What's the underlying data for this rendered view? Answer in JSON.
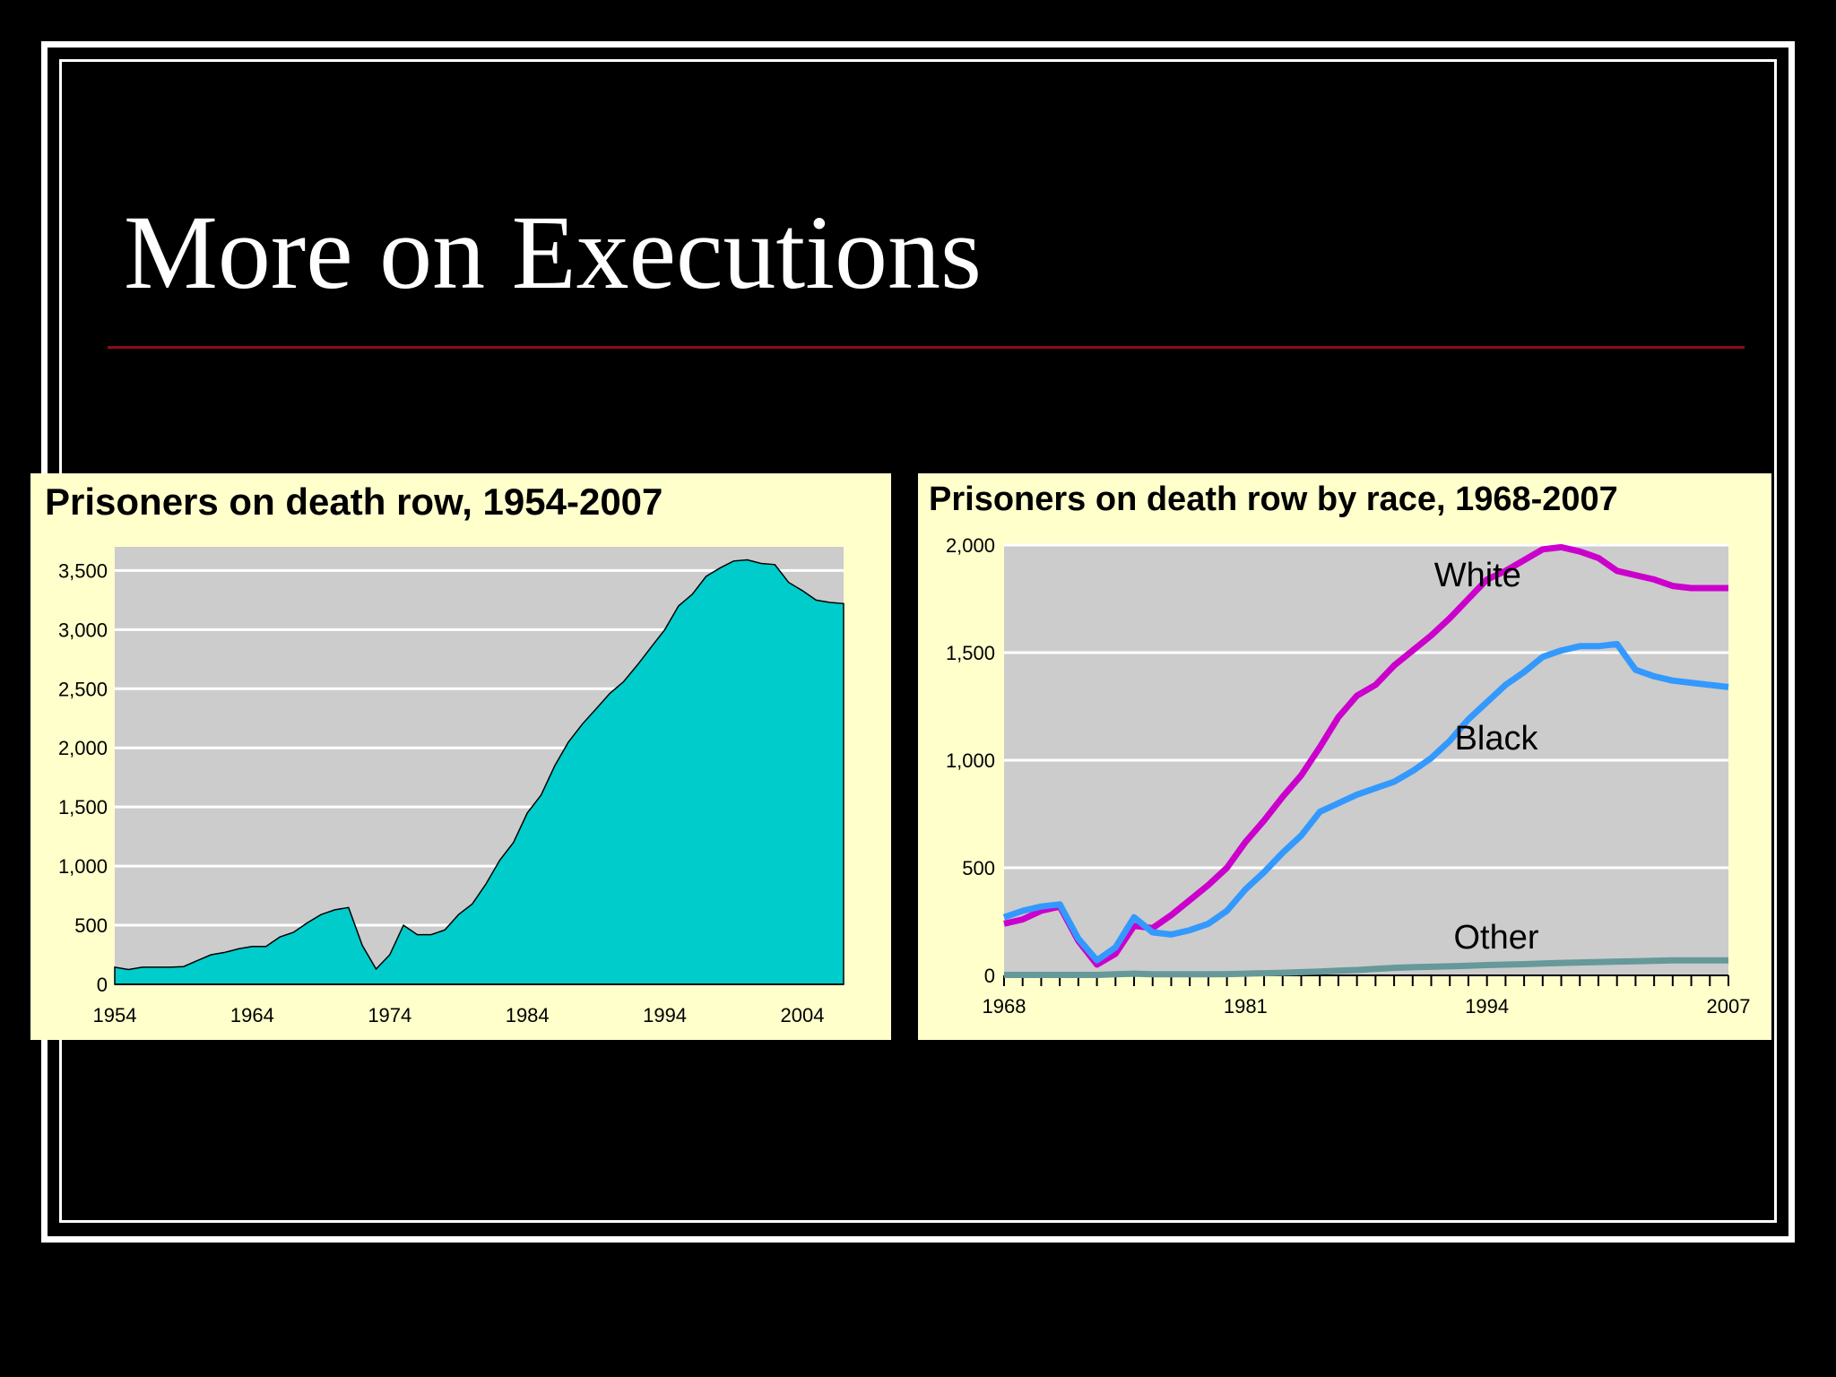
{
  "slide": {
    "title": "More on Executions"
  },
  "colors": {
    "background": "#000000",
    "frame": "#ffffff",
    "rule": "#8b0d18",
    "panel_bg": "#ffffcc",
    "plot_bg": "#cccccc",
    "area_fill": "#00cccc",
    "white_series": "#cc00cc",
    "black_series": "#3399ff",
    "other_series": "#669999"
  },
  "chart_data": [
    {
      "type": "area",
      "title": "Prisoners on death row, 1954-2007",
      "xlabel": "",
      "ylabel": "",
      "xlim": [
        1954,
        2007
      ],
      "ylim": [
        0,
        3700
      ],
      "yticks": [
        0,
        500,
        1000,
        1500,
        2000,
        2500,
        3000,
        3500
      ],
      "ytick_labels": [
        "0",
        "500",
        "1,000",
        "1,500",
        "2,000",
        "2,500",
        "3,000",
        "3,500"
      ],
      "xticks": [
        1954,
        1964,
        1974,
        1984,
        1994,
        2004
      ],
      "xtick_labels": [
        "1954",
        "1964",
        "1974",
        "1984",
        "1994",
        "2004"
      ],
      "grid": true,
      "x": [
        1954,
        1955,
        1956,
        1957,
        1958,
        1959,
        1960,
        1961,
        1962,
        1963,
        1964,
        1965,
        1966,
        1967,
        1968,
        1969,
        1970,
        1971,
        1972,
        1973,
        1974,
        1975,
        1976,
        1977,
        1978,
        1979,
        1980,
        1981,
        1982,
        1983,
        1984,
        1985,
        1986,
        1987,
        1988,
        1989,
        1990,
        1991,
        1992,
        1993,
        1994,
        1995,
        1996,
        1997,
        1998,
        1999,
        2000,
        2001,
        2002,
        2003,
        2004,
        2005,
        2006,
        2007
      ],
      "values": [
        145,
        125,
        145,
        145,
        145,
        150,
        200,
        250,
        270,
        300,
        320,
        320,
        400,
        440,
        520,
        590,
        630,
        650,
        330,
        130,
        250,
        500,
        420,
        420,
        460,
        590,
        680,
        850,
        1050,
        1200,
        1450,
        1600,
        1850,
        2050,
        2200,
        2330,
        2460,
        2560,
        2700,
        2850,
        3000,
        3200,
        3300,
        3450,
        3520,
        3580,
        3590,
        3560,
        3550,
        3400,
        3330,
        3250,
        3230,
        3220
      ]
    },
    {
      "type": "line",
      "title": "Prisoners on death row by race, 1968-2007",
      "xlabel": "",
      "ylabel": "",
      "xlim": [
        1968,
        2007
      ],
      "ylim": [
        0,
        2000
      ],
      "yticks": [
        0,
        500,
        1000,
        1500,
        2000
      ],
      "ytick_labels": [
        "0",
        "500",
        "1,000",
        "1,500",
        "2,000"
      ],
      "xticks": [
        1968,
        1981,
        1994,
        2007
      ],
      "xtick_labels": [
        "1968",
        "1981",
        "1994",
        "2007"
      ],
      "grid": true,
      "x": [
        1968,
        1969,
        1970,
        1971,
        1972,
        1973,
        1974,
        1975,
        1976,
        1977,
        1978,
        1979,
        1980,
        1981,
        1982,
        1983,
        1984,
        1985,
        1986,
        1987,
        1988,
        1989,
        1990,
        1991,
        1992,
        1993,
        1994,
        1995,
        1996,
        1997,
        1998,
        1999,
        2000,
        2001,
        2002,
        2003,
        2004,
        2005,
        2006,
        2007
      ],
      "series": [
        {
          "name": "White",
          "label": "White",
          "values": [
            240,
            260,
            300,
            320,
            160,
            50,
            100,
            230,
            220,
            280,
            350,
            420,
            500,
            620,
            720,
            830,
            930,
            1060,
            1200,
            1300,
            1350,
            1440,
            1510,
            1580,
            1660,
            1750,
            1840,
            1880,
            1930,
            1980,
            1990,
            1970,
            1940,
            1880,
            1860,
            1840,
            1810,
            1800,
            1800,
            1800
          ]
        },
        {
          "name": "Black",
          "label": "Black",
          "values": [
            270,
            300,
            320,
            330,
            170,
            70,
            130,
            270,
            200,
            190,
            210,
            240,
            300,
            400,
            480,
            570,
            650,
            760,
            800,
            840,
            870,
            900,
            950,
            1010,
            1090,
            1190,
            1270,
            1350,
            1410,
            1480,
            1510,
            1530,
            1530,
            1540,
            1420,
            1390,
            1370,
            1360,
            1350,
            1340
          ]
        },
        {
          "name": "Other",
          "label": "Other",
          "values": [
            2,
            2,
            2,
            2,
            2,
            2,
            5,
            8,
            5,
            5,
            5,
            5,
            6,
            8,
            10,
            12,
            15,
            18,
            22,
            25,
            30,
            35,
            38,
            40,
            42,
            45,
            48,
            50,
            52,
            55,
            58,
            60,
            62,
            64,
            66,
            68,
            70,
            70,
            70,
            70
          ]
        }
      ]
    }
  ]
}
